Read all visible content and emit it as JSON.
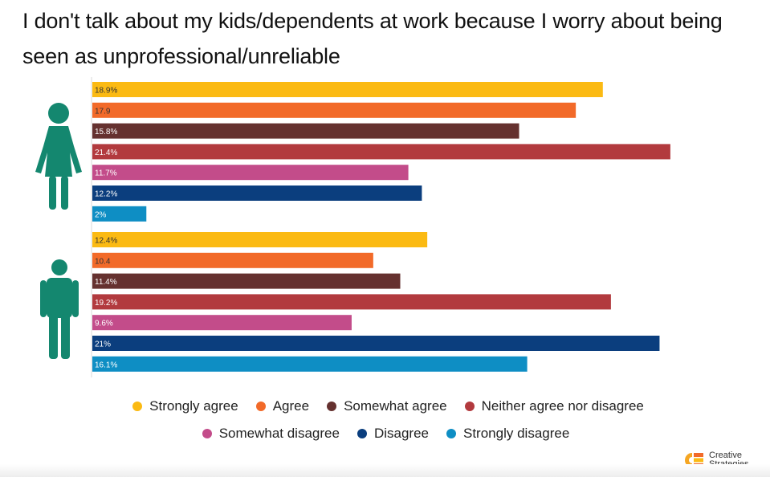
{
  "title": "I don't talk about my kids/dependents at work because I worry about being seen as unprofessional/unreliable",
  "chart_data": {
    "type": "bar",
    "orientation": "horizontal",
    "grid": false,
    "legend_position": "bottom",
    "categories": [
      "Strongly agree",
      "Agree",
      "Somewhat agree",
      "Neither agree nor disagree",
      "Somewhat disagree",
      "Disagree",
      "Strongly disagree"
    ],
    "colors": [
      "#FBBA13",
      "#F26A29",
      "#65312F",
      "#B23A3E",
      "#C34C8A",
      "#0B3E7E",
      "#0E8EC4"
    ],
    "xlim": [
      0,
      22
    ],
    "groups": [
      {
        "icon": "female-person-icon",
        "values": [
          18.9,
          17.9,
          15.8,
          21.4,
          11.7,
          12.2,
          2
        ],
        "labels": [
          "18.9%",
          "17.9",
          "15.8%",
          "21.4%",
          "11.7%",
          "12.2%",
          "2%"
        ]
      },
      {
        "icon": "male-person-icon",
        "values": [
          12.4,
          10.4,
          11.4,
          19.2,
          9.6,
          21,
          16.1
        ],
        "labels": [
          "12.4%",
          "10.4",
          "11.4%",
          "19.2%",
          "9.6%",
          "21%",
          "16.1%"
        ]
      }
    ]
  },
  "legend": {
    "row1": [
      "Strongly agree",
      "Agree",
      "Somewhat agree",
      "Neither agree nor disagree"
    ],
    "row2": [
      "Somewhat disagree",
      "Disagree",
      "Strongly disagree"
    ]
  },
  "icon_color": "#14876F",
  "brand": {
    "line1": "Creative",
    "line2": "Strategies",
    "logo_icon": "creative-strategies-logo-icon"
  }
}
